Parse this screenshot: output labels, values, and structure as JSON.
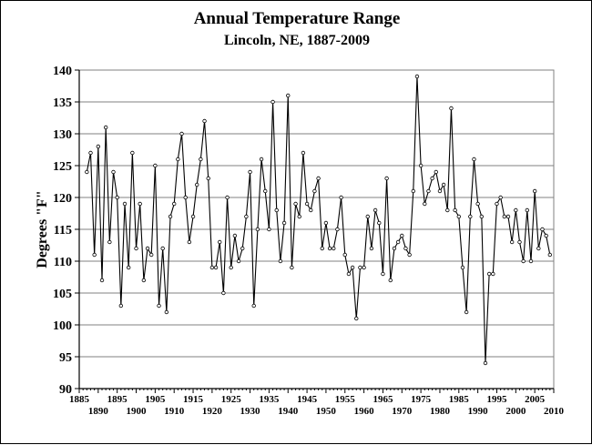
{
  "chart_data": {
    "type": "line",
    "title": "Annual Temperature Range",
    "subtitle": "Lincoln, NE, 1887-2009",
    "xlabel": "",
    "ylabel": "Degrees \"F\"",
    "ylim": [
      90,
      140
    ],
    "yticks": [
      90,
      95,
      100,
      105,
      110,
      115,
      120,
      125,
      130,
      135,
      140
    ],
    "xlim": [
      1885,
      2010
    ],
    "xticks_top_row": [
      "1885",
      "1895",
      "1905",
      "1915",
      "1925",
      "1935",
      "1945",
      "1955",
      "1965",
      "1975",
      "1985",
      "1995",
      "2005"
    ],
    "xticks_bottom_row": [
      "1890",
      "1900",
      "1910",
      "1920",
      "1930",
      "1940",
      "1950",
      "1960",
      "1970",
      "1980",
      "1990",
      "2000",
      "2010"
    ],
    "grid": true,
    "legend": "none",
    "line_color": "#000000",
    "marker_color": "#ffffff",
    "series": [
      {
        "x": [
          1887,
          1888,
          1889,
          1890,
          1891,
          1892,
          1893,
          1894,
          1895,
          1896,
          1897,
          1898,
          1899,
          1900,
          1901,
          1902,
          1903,
          1904,
          1905,
          1906,
          1907,
          1908,
          1909,
          1910,
          1911,
          1912,
          1913,
          1914,
          1915,
          1916,
          1917,
          1918,
          1919,
          1920,
          1921,
          1922,
          1923,
          1924,
          1925,
          1926,
          1927,
          1928,
          1929,
          1930,
          1931,
          1932,
          1933,
          1934,
          1935,
          1936,
          1937,
          1938,
          1939,
          1940,
          1941,
          1942,
          1943,
          1944,
          1945,
          1946,
          1947,
          1948,
          1949,
          1950,
          1951,
          1952,
          1953,
          1954,
          1955,
          1956,
          1957,
          1958,
          1959,
          1960,
          1961,
          1962,
          1963,
          1964,
          1965,
          1966,
          1967,
          1968,
          1969,
          1970,
          1971,
          1972,
          1973,
          1974,
          1975,
          1976,
          1977,
          1978,
          1979,
          1980,
          1981,
          1982,
          1983,
          1984,
          1985,
          1986,
          1987,
          1988,
          1989,
          1990,
          1991,
          1992,
          1993,
          1994,
          1995,
          1996,
          1997,
          1998,
          1999,
          2000,
          2001,
          2002,
          2003,
          2004,
          2005,
          2006,
          2007,
          2008,
          2009
        ],
        "values": [
          124,
          127,
          111,
          128,
          107,
          131,
          113,
          124,
          120,
          103,
          119,
          109,
          127,
          112,
          119,
          107,
          112,
          111,
          125,
          103,
          112,
          102,
          117,
          119,
          126,
          130,
          120,
          113,
          117,
          122,
          126,
          132,
          123,
          109,
          109,
          113,
          105,
          120,
          109,
          114,
          110,
          112,
          117,
          124,
          103,
          115,
          126,
          121,
          115,
          135,
          118,
          110,
          116,
          136,
          109,
          119,
          117,
          127,
          119,
          118,
          121,
          123,
          112,
          116,
          112,
          112,
          115,
          120,
          111,
          108,
          109,
          101,
          109,
          109,
          117,
          112,
          118,
          116,
          108,
          123,
          107,
          112,
          113,
          114,
          112,
          111,
          121,
          139,
          125,
          119,
          121,
          123,
          124,
          121,
          122,
          118,
          134,
          118,
          117,
          109,
          102,
          117,
          126,
          119,
          117,
          94,
          108,
          108,
          119,
          120,
          117,
          117,
          113,
          118,
          113,
          110,
          118,
          110,
          121,
          112,
          115,
          114,
          111
        ]
      }
    ]
  }
}
